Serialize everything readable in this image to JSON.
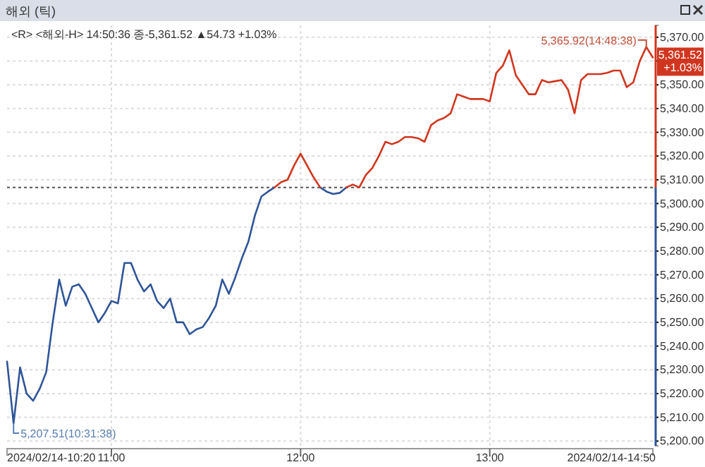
{
  "chart_data": {
    "type": "line",
    "title": "해외 (틱)",
    "categories": [
      null,
      null,
      null,
      null,
      null,
      null,
      null,
      null,
      null,
      null,
      null,
      null,
      null,
      null,
      null,
      null,
      "11:00",
      null,
      null,
      null,
      null,
      null,
      null,
      null,
      null,
      null,
      null,
      null,
      null,
      null,
      null,
      null,
      null,
      null,
      null,
      null,
      null,
      null,
      null,
      null,
      null,
      null,
      null,
      null,
      null,
      "12:00",
      null,
      null,
      null,
      null,
      null,
      null,
      null,
      null,
      null,
      null,
      null,
      null,
      null,
      null,
      null,
      null,
      null,
      null,
      null,
      null,
      null,
      null,
      null,
      null,
      null,
      null,
      null,
      null,
      "13:00",
      null,
      null,
      null,
      null,
      null,
      null,
      null,
      null,
      null,
      null,
      null,
      null,
      null,
      null,
      null,
      null,
      null,
      null,
      null,
      null,
      null,
      null,
      null,
      null,
      null
    ],
    "series": [
      {
        "color": "#2f5597",
        "values": [
          5233.5,
          5207.5,
          5231,
          5220,
          5217,
          5222,
          5229,
          5250,
          5268,
          5257,
          5265,
          5266,
          5262,
          5256,
          5250,
          5254,
          5259,
          5258,
          5275,
          5275,
          5268,
          5263,
          5266,
          5259,
          5256,
          5260,
          5250,
          5250,
          5245,
          5247,
          5248,
          5252,
          5257,
          5268,
          5262,
          5269,
          5277,
          5284,
          5295,
          5303,
          5305,
          5306.8,
          null,
          null,
          null,
          null,
          null,
          null,
          5306.8,
          5305,
          5304,
          5304.5,
          5306.8,
          null,
          null,
          null,
          null,
          null,
          null,
          null,
          null,
          null,
          null,
          null,
          null,
          null,
          null,
          null,
          null,
          null,
          null,
          null,
          null,
          null,
          null,
          null,
          null,
          null,
          null,
          null,
          null,
          null,
          null,
          null,
          null,
          null,
          null,
          null,
          null,
          null,
          null,
          null,
          null,
          null,
          null,
          null,
          null,
          null,
          null,
          null
        ]
      },
      {
        "color": "#d0361f",
        "values": [
          null,
          null,
          null,
          null,
          null,
          null,
          null,
          null,
          null,
          null,
          null,
          null,
          null,
          null,
          null,
          null,
          null,
          null,
          null,
          null,
          null,
          null,
          null,
          null,
          null,
          null,
          null,
          null,
          null,
          null,
          null,
          null,
          null,
          null,
          null,
          null,
          null,
          null,
          null,
          null,
          null,
          5306.8,
          5309,
          5310,
          5316,
          5321,
          5316,
          5311,
          5306.8,
          null,
          null,
          null,
          5306.8,
          5308,
          5306.8,
          5312,
          5315,
          5320,
          5326,
          5325,
          5326,
          5328,
          5328,
          5327.5,
          5326,
          5333,
          5335,
          5336,
          5338,
          5346,
          5345,
          5344,
          5344,
          5344,
          5343,
          5355,
          5358,
          5364.5,
          5354,
          5350,
          5346,
          5346,
          5352,
          5351,
          5351.5,
          5352,
          5348,
          5338,
          5352,
          5354.5,
          5354.5,
          5354.5,
          5355,
          5356,
          5356,
          5349,
          5351,
          5360,
          5365.9,
          5361.5
        ]
      }
    ],
    "ylim": [
      5198,
      5375
    ],
    "yticks": [
      {
        "value": 5200,
        "label": "5,200.00"
      },
      {
        "value": 5210,
        "label": "5,210.00"
      },
      {
        "value": 5220,
        "label": "5,220.00"
      },
      {
        "value": 5230,
        "label": "5,230.00"
      },
      {
        "value": 5240,
        "label": "5,240.00"
      },
      {
        "value": 5250,
        "label": "5,250.00"
      },
      {
        "value": 5260,
        "label": "5,260.00"
      },
      {
        "value": 5270,
        "label": "5,270.00"
      },
      {
        "value": 5280,
        "label": "5,280.00"
      },
      {
        "value": 5290,
        "label": "5,290.00"
      },
      {
        "value": 5300,
        "label": "5,300.00"
      },
      {
        "value": 5310,
        "label": "5,310.00"
      },
      {
        "value": 5320,
        "label": "5,320.00"
      },
      {
        "value": 5330,
        "label": "5,330.00"
      },
      {
        "value": 5340,
        "label": "5,340.00"
      },
      {
        "value": 5350,
        "label": "5,350.00"
      },
      {
        "value": 5360,
        "label": null
      },
      {
        "value": 5370,
        "label": "5,370.00"
      }
    ],
    "ref_lines": [
      {
        "axis": "y",
        "value": 5306.79,
        "color": "#555555",
        "line_style": "dotted"
      }
    ],
    "annotations": [
      "<R> <해외-H> 14:50:36 종-5,361.52 ▲54.73 +1.03%",
      "5,207.51(10:31:38)",
      "5,365.92(14:48:38)",
      "5,361.52\n+1.03%",
      "2024/02/14-10:20",
      "2024/02/14-14:50"
    ],
    "grid": true,
    "marker": "none",
    "line_style": "solid"
  }
}
